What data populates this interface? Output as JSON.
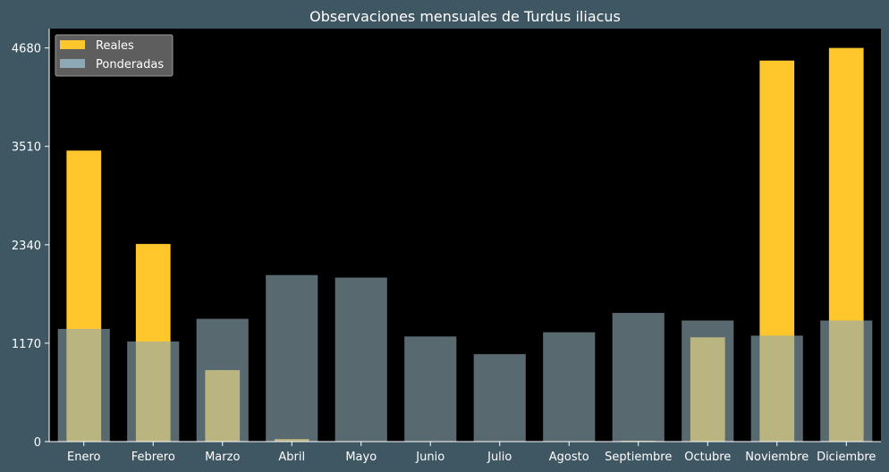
{
  "chart_data": {
    "type": "bar",
    "title": "Observaciones mensuales de Turdus iliacus",
    "xlabel": "",
    "ylabel": "",
    "categories": [
      "Enero",
      "Febrero",
      "Marzo",
      "Abril",
      "Mayo",
      "Junio",
      "Julio",
      "Agosto",
      "Septiembre",
      "Octubre",
      "Noviembre",
      "Diciembre"
    ],
    "series": [
      {
        "name": "Reales",
        "values": [
          3460,
          2350,
          850,
          30,
          0,
          0,
          0,
          0,
          10,
          1240,
          4530,
          4680
        ]
      },
      {
        "name": "Ponderadas",
        "values": [
          1340,
          1190,
          1460,
          1980,
          1950,
          1250,
          1040,
          1300,
          1530,
          1440,
          1260,
          1440
        ]
      }
    ],
    "yticks": [
      0,
      1170,
      2340,
      3510,
      4680
    ],
    "ylim": [
      0,
      4910
    ],
    "legend_position": "top-left",
    "grid": false,
    "colors": {
      "figure_background": "#3f5663",
      "plot_background": "#000000",
      "Reales": "#ffc72c",
      "Ponderadas": "#8fa9b4",
      "text": "#ffffff"
    }
  }
}
